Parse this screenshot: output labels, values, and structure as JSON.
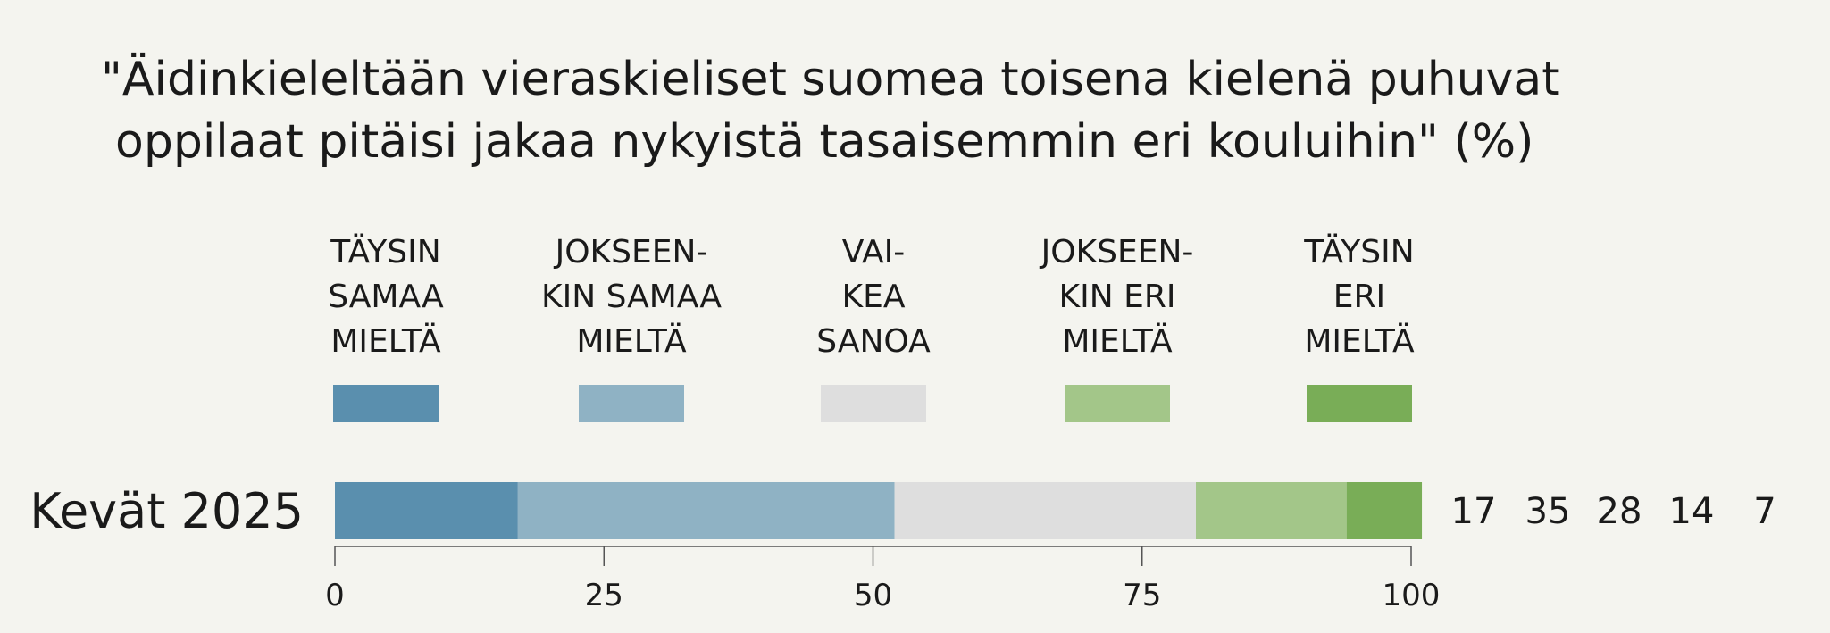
{
  "chart_data": {
    "type": "bar",
    "orientation": "horizontal",
    "stacked": true,
    "title_lines": [
      "\"Äidinkieleltään vieraskieliset suomea toisena kielenä puhuvat",
      "oppilaat pitäisi jakaa nykyistä tasaisemmin eri kouluihin\" (%)"
    ],
    "categories": [
      "Kevät 2025"
    ],
    "series": [
      {
        "name": "TÄYSIN SAMAA MIELTÄ",
        "legend_lines": [
          "TÄYSIN",
          "SAMAA",
          "MIELTÄ"
        ],
        "color": "#5a8fae",
        "values": [
          17
        ]
      },
      {
        "name": "JOKSEENKIN SAMAA MIELTÄ",
        "legend_lines": [
          "JOKSEEN-",
          "KIN SAMAA",
          "MIELTÄ"
        ],
        "color": "#8fb2c4",
        "values": [
          35
        ]
      },
      {
        "name": "VAIKEA SANOA",
        "legend_lines": [
          "VAI-",
          "KEA",
          "SANOA"
        ],
        "color": "#dedede",
        "values": [
          28
        ]
      },
      {
        "name": "JOKSEENKIN ERI MIELTÄ",
        "legend_lines": [
          "JOKSEEN-",
          "KIN ERI",
          "MIELTÄ"
        ],
        "color": "#a3c689",
        "values": [
          14
        ]
      },
      {
        "name": "TÄYSIN ERI MIELTÄ",
        "legend_lines": [
          "TÄYSIN",
          "ERI",
          "MIELTÄ"
        ],
        "color": "#79ad57",
        "values": [
          7
        ]
      }
    ],
    "value_labels": [
      "17",
      "35",
      "28",
      "14",
      "7"
    ],
    "xlim": [
      0,
      100
    ],
    "xticks": [
      0,
      25,
      50,
      75,
      100
    ],
    "xtick_labels": [
      "0",
      "25",
      "50",
      "75",
      "100"
    ],
    "grid": false,
    "legend_position": "top"
  }
}
